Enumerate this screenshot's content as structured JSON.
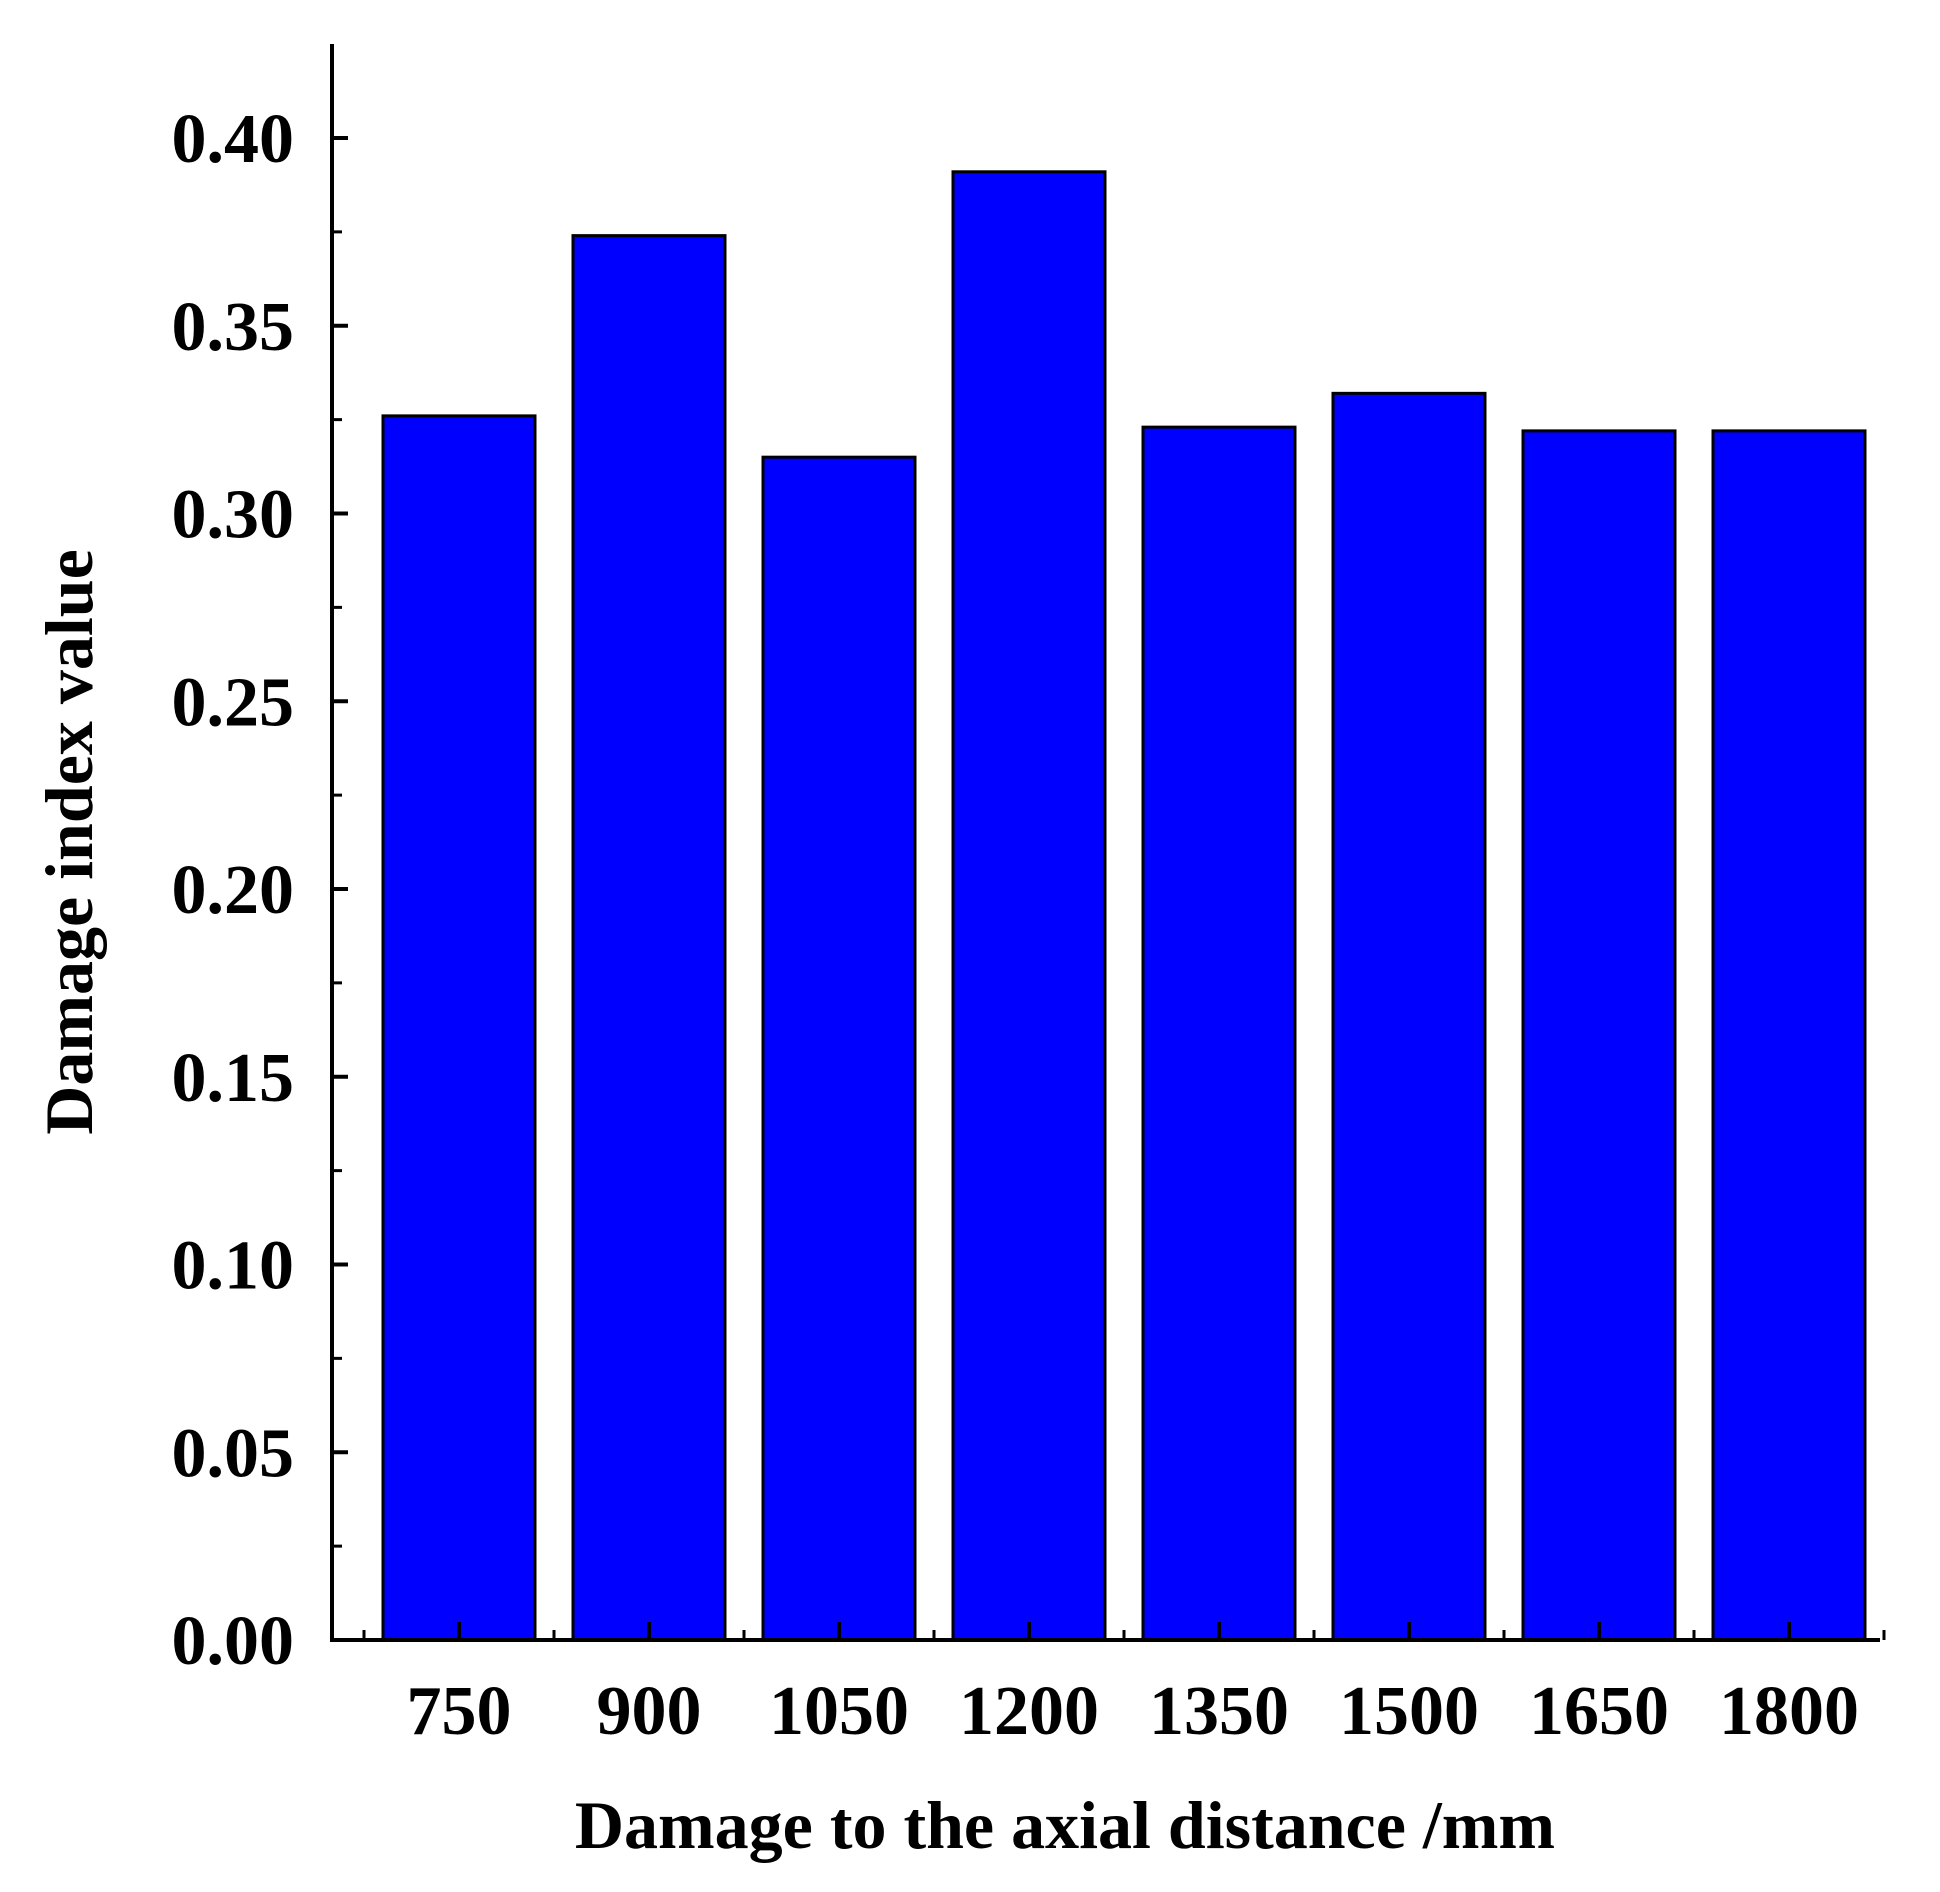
{
  "chart_data": {
    "type": "bar",
    "title": "",
    "xlabel": "Damage to the axial distance /mm",
    "ylabel": "Damage index value",
    "categories": [
      "750",
      "900",
      "1050",
      "1200",
      "1350",
      "1500",
      "1650",
      "1800"
    ],
    "values": [
      0.326,
      0.374,
      0.315,
      0.391,
      0.323,
      0.332,
      0.322,
      0.322
    ],
    "ylim": [
      0,
      0.425
    ],
    "yticks": [
      "0.00",
      "0.05",
      "0.10",
      "0.15",
      "0.20",
      "0.25",
      "0.30",
      "0.35",
      "0.40"
    ],
    "ytick_values": [
      0,
      0.05,
      0.1,
      0.15,
      0.2,
      0.25,
      0.3,
      0.35,
      0.4
    ],
    "grid": false,
    "legend": "none",
    "colors": {
      "bar_fill": "#0000ff",
      "bar_stroke": "#000000",
      "axis": "#000000"
    }
  }
}
